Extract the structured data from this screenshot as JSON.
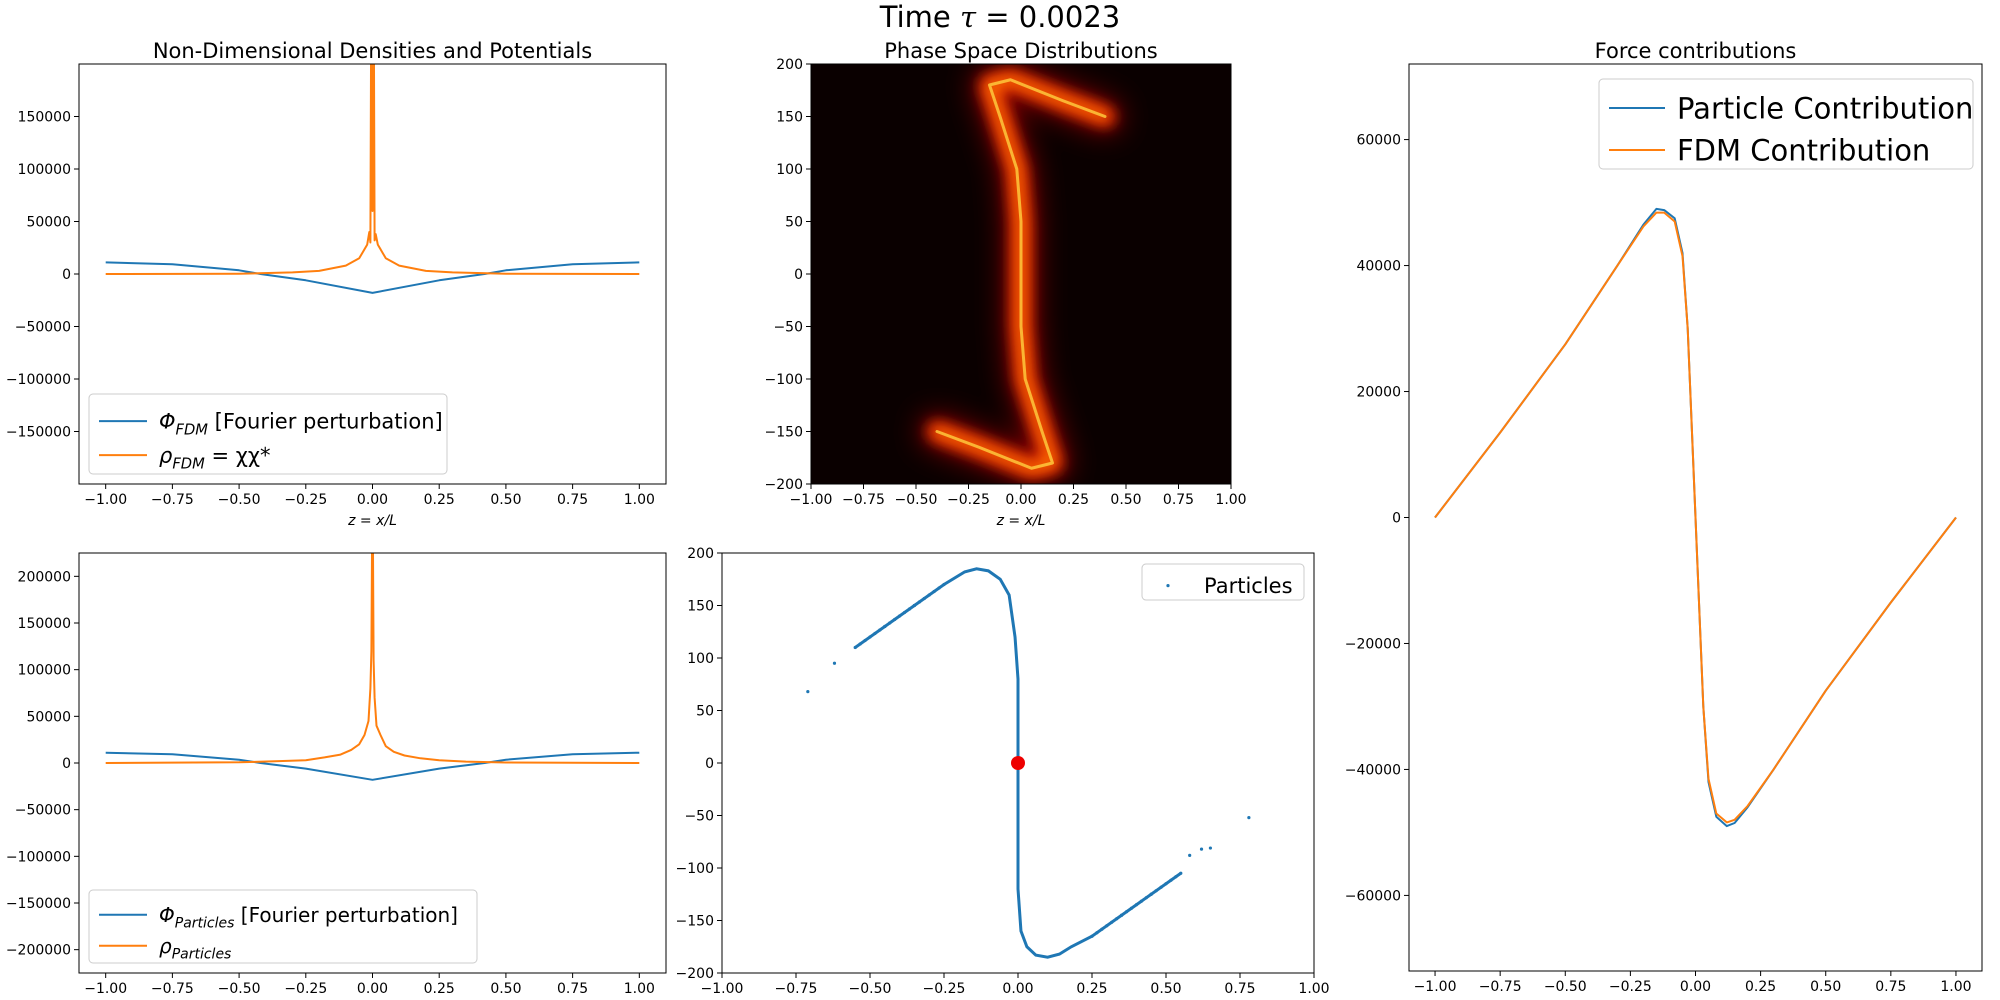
{
  "figure": {
    "suptitle_prefix": "Time ",
    "suptitle_symbol": "τ",
    "suptitle_value": " = 0.0023"
  },
  "colors": {
    "blue": "#1f77b4",
    "orange": "#ff7f0e",
    "marker": "#ee0000"
  },
  "chart_data": [
    {
      "id": "densities",
      "type": "line",
      "title": "Non-Dimensional Densities and Potentials",
      "xlabel": "z = x/L",
      "xlim": [
        -1.1,
        1.1
      ],
      "ylim": [
        -200000,
        200000
      ],
      "xticks": [
        -1.0,
        -0.75,
        -0.5,
        -0.25,
        0.0,
        0.25,
        0.5,
        0.75,
        1.0
      ],
      "xtick_labels": [
        "−1.00",
        "−0.75",
        "−0.50",
        "−0.25",
        "0.00",
        "0.25",
        "0.50",
        "0.75",
        "1.00"
      ],
      "yticks": [
        150000,
        100000,
        50000,
        0,
        -50000,
        -100000,
        -150000
      ],
      "ytick_labels": [
        "150000",
        "100000",
        "50000",
        "0",
        "−50000",
        "−100000",
        "−150000"
      ],
      "legend": {
        "location": "lower-left",
        "entries": [
          {
            "symbol": "Φ",
            "sub": "FDM",
            "rest": " [Fourier perturbation]"
          },
          {
            "symbol": "ρ",
            "sub": "FDM",
            "rest": " = χχ*"
          }
        ]
      },
      "series": [
        {
          "name": "Φ_FDM [Fourier perturbation]",
          "color_key": "blue",
          "x": [
            -1.0,
            -0.75,
            -0.5,
            -0.42,
            -0.25,
            0.0,
            0.25,
            0.42,
            0.5,
            0.75,
            1.0
          ],
          "y": [
            11000,
            9300,
            3500,
            0,
            -6000,
            -18000,
            -6000,
            0,
            3500,
            9300,
            11000
          ]
        },
        {
          "name": "ρ_FDM = χχ*",
          "color_key": "orange",
          "x": [
            -1.0,
            -0.5,
            -0.3,
            -0.2,
            -0.1,
            -0.05,
            -0.02,
            -0.012,
            -0.008,
            -0.005,
            -0.002,
            0.0,
            0.002,
            0.005,
            0.008,
            0.012,
            0.02,
            0.05,
            0.1,
            0.2,
            0.3,
            0.5,
            1.0
          ],
          "y": [
            0,
            300,
            1500,
            3000,
            8000,
            15000,
            28000,
            40000,
            30000,
            250000,
            140000,
            60000,
            170000,
            250000,
            32000,
            38000,
            28000,
            15000,
            8000,
            3000,
            1500,
            300,
            0
          ]
        }
      ]
    },
    {
      "id": "phase-space",
      "type": "heatmap",
      "title": "Phase Space Distributions",
      "xlabel": "z = x/L",
      "xlim": [
        -1.0,
        1.0
      ],
      "ylim": [
        -200,
        200
      ],
      "xticks": [
        -1.0,
        -0.75,
        -0.5,
        -0.25,
        0.0,
        0.25,
        0.5,
        0.75,
        1.0
      ],
      "xtick_labels": [
        "−1.00",
        "−0.75",
        "−0.50",
        "−0.25",
        "0.00",
        "0.25",
        "0.50",
        "0.75",
        "1.00"
      ],
      "yticks": [
        200,
        150,
        100,
        50,
        0,
        -50,
        -100,
        -150,
        -200
      ],
      "ytick_labels": [
        "200",
        "150",
        "100",
        "50",
        "0",
        "−50",
        "−100",
        "−150",
        "−200"
      ],
      "colormap": "hot",
      "ridge": {
        "x": [
          0.4,
          0.2,
          -0.05,
          -0.15,
          -0.1,
          -0.02,
          0.0,
          0.0,
          0.0,
          0.02,
          0.1,
          0.15,
          0.05,
          -0.2,
          -0.4
        ],
        "y": [
          150,
          165,
          185,
          180,
          150,
          100,
          50,
          0,
          -50,
          -100,
          -150,
          -180,
          -185,
          -165,
          -150
        ]
      }
    },
    {
      "id": "forces",
      "type": "line",
      "title": "Force contributions",
      "xlim": [
        -1.1,
        1.1
      ],
      "ylim": [
        -72000,
        72000
      ],
      "xticks": [
        -1.0,
        -0.75,
        -0.5,
        -0.25,
        0.0,
        0.25,
        0.5,
        0.75,
        1.0
      ],
      "xtick_labels": [
        "−1.00",
        "−0.75",
        "−0.50",
        "−0.25",
        "0.00",
        "0.25",
        "0.50",
        "0.75",
        "1.00"
      ],
      "yticks": [
        60000,
        40000,
        20000,
        0,
        -20000,
        -40000,
        -60000
      ],
      "ytick_labels": [
        "60000",
        "40000",
        "20000",
        "0",
        "−20000",
        "−40000",
        "−60000"
      ],
      "legend": {
        "location": "upper-right",
        "entries": [
          {
            "text": "Particle Contribution"
          },
          {
            "text": "FDM Contribution"
          }
        ]
      },
      "series": [
        {
          "name": "Particle Contribution",
          "color_key": "blue",
          "x": [
            -1.0,
            -0.75,
            -0.5,
            -0.3,
            -0.2,
            -0.15,
            -0.12,
            -0.08,
            -0.05,
            -0.03,
            -0.01,
            0.0,
            0.01,
            0.03,
            0.05,
            0.08,
            0.12,
            0.15,
            0.2,
            0.3,
            0.5,
            0.75,
            1.0
          ],
          "y": [
            0,
            13500,
            27500,
            40000,
            46500,
            49000,
            48800,
            47500,
            42000,
            30000,
            10000,
            0,
            -10000,
            -30000,
            -42000,
            -47500,
            -49000,
            -48500,
            -46000,
            -40000,
            -27500,
            -13500,
            0
          ]
        },
        {
          "name": "FDM Contribution",
          "color_key": "orange",
          "x": [
            -1.0,
            -0.75,
            -0.5,
            -0.3,
            -0.2,
            -0.15,
            -0.12,
            -0.08,
            -0.05,
            -0.03,
            -0.01,
            0.0,
            0.01,
            0.03,
            0.05,
            0.08,
            0.12,
            0.15,
            0.2,
            0.3,
            0.5,
            0.75,
            1.0
          ],
          "y": [
            0,
            13500,
            27500,
            40000,
            46200,
            48400,
            48400,
            47000,
            41500,
            30000,
            10000,
            0,
            -10000,
            -30000,
            -41500,
            -47000,
            -48400,
            -48000,
            -45800,
            -40000,
            -27500,
            -13500,
            0
          ]
        }
      ]
    },
    {
      "id": "particle-densities",
      "type": "line",
      "xlim": [
        -1.1,
        1.1
      ],
      "ylim": [
        -225000,
        225000
      ],
      "xticks": [
        -1.0,
        -0.75,
        -0.5,
        -0.25,
        0.0,
        0.25,
        0.5,
        0.75,
        1.0
      ],
      "xtick_labels": [
        "−1.00",
        "−0.75",
        "−0.50",
        "−0.25",
        "0.00",
        "0.25",
        "0.50",
        "0.75",
        "1.00"
      ],
      "yticks": [
        200000,
        150000,
        100000,
        50000,
        0,
        -50000,
        -100000,
        -150000,
        -200000
      ],
      "ytick_labels": [
        "200000",
        "150000",
        "100000",
        "50000",
        "0",
        "−50000",
        "−100000",
        "−150000",
        "−200000"
      ],
      "legend": {
        "location": "lower-left",
        "entries": [
          {
            "symbol": "Φ",
            "sub": "Particles",
            "rest": " [Fourier perturbation]"
          },
          {
            "symbol": "ρ",
            "sub": "Particles",
            "rest": ""
          }
        ]
      },
      "series": [
        {
          "name": "Φ_Particles [Fourier perturbation]",
          "color_key": "blue",
          "x": [
            -1.0,
            -0.75,
            -0.5,
            -0.42,
            -0.25,
            0.0,
            0.25,
            0.42,
            0.5,
            0.75,
            1.0
          ],
          "y": [
            11000,
            9300,
            3500,
            0,
            -6000,
            -18000,
            -6000,
            0,
            3500,
            9300,
            11000
          ]
        },
        {
          "name": "ρ_Particles",
          "color_key": "orange",
          "x": [
            -1.0,
            -0.5,
            -0.35,
            -0.25,
            -0.18,
            -0.12,
            -0.08,
            -0.05,
            -0.03,
            -0.015,
            -0.008,
            -0.004,
            -0.002,
            0.0,
            0.002,
            0.004,
            0.008,
            0.015,
            0.03,
            0.05,
            0.08,
            0.12,
            0.18,
            0.25,
            0.35,
            0.5,
            1.0
          ],
          "y": [
            0,
            800,
            2000,
            3000,
            6000,
            9000,
            14000,
            20000,
            30000,
            45000,
            80000,
            120000,
            225000,
            150000,
            225000,
            110000,
            70000,
            40000,
            30000,
            18000,
            12000,
            8000,
            5000,
            3000,
            1500,
            500,
            0
          ]
        }
      ]
    },
    {
      "id": "particles",
      "type": "scatter",
      "xlim": [
        -1.0,
        1.0
      ],
      "ylim": [
        -200,
        200
      ],
      "xticks": [
        -1.0,
        -0.75,
        -0.5,
        -0.25,
        0.0,
        0.25,
        0.5,
        0.75,
        1.0
      ],
      "xtick_labels": [
        "−1.00",
        "−0.75",
        "−0.50",
        "−0.25",
        "0.00",
        "0.25",
        "0.50",
        "0.75",
        "1.00"
      ],
      "yticks": [
        200,
        150,
        100,
        50,
        0,
        -50,
        -100,
        -150,
        -200
      ],
      "ytick_labels": [
        "200",
        "150",
        "100",
        "50",
        "0",
        "−50",
        "−100",
        "−150",
        "−200"
      ],
      "legend": {
        "location": "upper-right",
        "entries": [
          {
            "text": "Particles"
          }
        ]
      },
      "curve": {
        "x": [
          -0.55,
          -0.45,
          -0.35,
          -0.25,
          -0.18,
          -0.14,
          -0.1,
          -0.06,
          -0.03,
          -0.01,
          0.0,
          0.0,
          0.0,
          0.0,
          0.01,
          0.03,
          0.06,
          0.1,
          0.14,
          0.18,
          0.25,
          0.35,
          0.45,
          0.55
        ],
        "y": [
          110,
          130,
          150,
          170,
          182,
          185,
          183,
          175,
          160,
          120,
          80,
          0,
          -80,
          -120,
          -160,
          -175,
          -183,
          -185,
          -182,
          -175,
          -165,
          -145,
          -125,
          -105
        ]
      },
      "outliers": {
        "x": [
          -0.71,
          -0.62,
          0.58,
          0.62,
          0.65,
          0.78
        ],
        "y": [
          68,
          95,
          -88,
          -82,
          -81,
          -52
        ]
      },
      "marker": {
        "x": 0.0,
        "y": 0.0
      }
    }
  ]
}
